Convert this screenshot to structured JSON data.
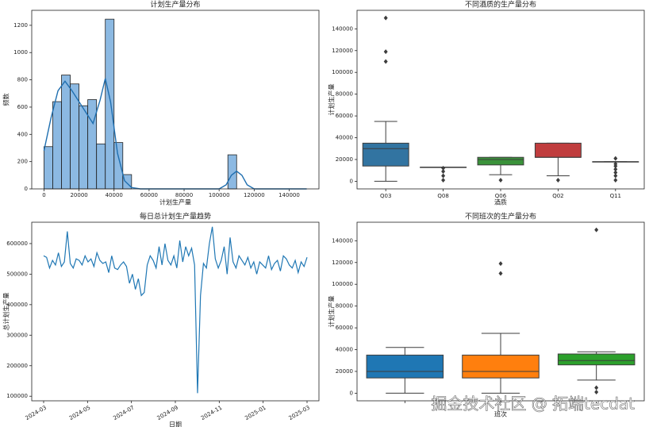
{
  "chart_data": [
    {
      "type": "histogram",
      "title": "计划生产量分布",
      "x_label": "计划生产量",
      "y_label": "频数",
      "color": "#5b9bd5",
      "line_color": "#1f6fb0",
      "bins": [
        0,
        5000,
        10000,
        15000,
        20000,
        25000,
        30000,
        35000,
        40000,
        45000,
        50000,
        55000,
        60000,
        65000,
        70000,
        75000,
        80000,
        85000,
        90000,
        95000,
        100000,
        105000,
        110000,
        115000,
        120000,
        125000,
        130000,
        135000,
        140000,
        145000,
        150000
      ],
      "values": [
        310,
        640,
        835,
        770,
        610,
        655,
        330,
        1245,
        340,
        105,
        0,
        0,
        0,
        0,
        0,
        0,
        0,
        0,
        0,
        0,
        0,
        250,
        0,
        0,
        0,
        0,
        0,
        0,
        0,
        0
      ],
      "kde": {
        "x": [
          0,
          4000,
          8000,
          12000,
          16000,
          20000,
          24000,
          28000,
          32000,
          35000,
          38000,
          42000,
          46000,
          50000,
          55000,
          60000,
          100000,
          104000,
          107000,
          110000,
          113000,
          116000,
          120000,
          150000
        ],
        "values": [
          280,
          520,
          720,
          790,
          720,
          640,
          560,
          480,
          650,
          810,
          640,
          260,
          60,
          10,
          0,
          0,
          0,
          30,
          100,
          130,
          100,
          30,
          0,
          0
        ]
      },
      "xlim": [
        -7000,
        157000
      ],
      "xticks": [
        0,
        20000,
        40000,
        60000,
        80000,
        100000,
        120000,
        140000
      ],
      "ylim": [
        0,
        1310
      ],
      "yticks": [
        0,
        200,
        400,
        600,
        800,
        1000,
        1200
      ]
    },
    {
      "type": "box",
      "title": "不同酒质的生产量分布",
      "x_label": "酒质",
      "y_label": "计划生产量",
      "categories": [
        "Q03",
        "Q08",
        "Q06",
        "Q02",
        "Q11"
      ],
      "boxes": [
        {
          "color": "#3274a1",
          "min": 0,
          "q1": 14000,
          "median": 30000,
          "q3": 35000,
          "max": 55000,
          "outliers": [
            110000,
            119000,
            150000
          ]
        },
        {
          "color": "#e1812c",
          "min": 13000,
          "q1": 13000,
          "median": 13000,
          "q3": 13000,
          "max": 13000,
          "outliers": [
            1000,
            5000,
            9000,
            12000
          ]
        },
        {
          "color": "#3a923a",
          "min": 6000,
          "q1": 15000,
          "median": 20000,
          "q3": 22000,
          "max": 22000,
          "outliers": [
            1000
          ]
        },
        {
          "color": "#c03d3e",
          "min": 5000,
          "q1": 22000,
          "median": 22000,
          "q3": 35000,
          "max": 35000,
          "outliers": [
            1000
          ]
        },
        {
          "color": "#9372b2",
          "min": 18000,
          "q1": 18000,
          "median": 18000,
          "q3": 18000,
          "max": 18000,
          "outliers": [
            1000,
            5000,
            8000,
            11000,
            14000,
            16000,
            21000
          ]
        }
      ],
      "ylim": [
        -7000,
        157000
      ],
      "yticks": [
        0,
        20000,
        40000,
        60000,
        80000,
        100000,
        120000,
        140000
      ]
    },
    {
      "type": "line",
      "title": "每日总计划生产量趋势",
      "x_label": "日期",
      "y_label": "总计划生产量",
      "color": "#1f77b4",
      "xticks": [
        "2024-03",
        "2024-05",
        "2024-07",
        "2024-09",
        "2024-11",
        "2025-01",
        "2025-03"
      ],
      "values": [
        560000,
        555000,
        520000,
        545000,
        530000,
        570000,
        525000,
        540000,
        640000,
        535000,
        520000,
        550000,
        545000,
        530000,
        560000,
        540000,
        550000,
        525000,
        570000,
        545000,
        535000,
        540000,
        505000,
        560000,
        520000,
        515000,
        530000,
        540000,
        525000,
        470000,
        500000,
        450000,
        485000,
        430000,
        440000,
        530000,
        560000,
        545000,
        520000,
        590000,
        530000,
        600000,
        545000,
        530000,
        560000,
        520000,
        610000,
        540000,
        590000,
        560000,
        585000,
        530000,
        110000,
        430000,
        535000,
        520000,
        600000,
        655000,
        550000,
        520000,
        545000,
        590000,
        500000,
        620000,
        540000,
        520000,
        560000,
        545000,
        530000,
        555000,
        520000,
        540000,
        500000,
        540000,
        530000,
        520000,
        560000,
        515000,
        535000,
        545000,
        510000,
        560000,
        550000,
        530000,
        520000,
        545000,
        505000,
        540000,
        525000,
        555000
      ],
      "ylim": [
        85000,
        670000
      ],
      "yticks": [
        100000,
        200000,
        300000,
        400000,
        500000,
        600000
      ]
    },
    {
      "type": "box",
      "title": "不同班次的生产量分布",
      "x_label": "班次",
      "y_label": "计划生产量",
      "categories": [
        null,
        null,
        null
      ],
      "boxes": [
        {
          "color": "#1f77b4",
          "min": 0,
          "q1": 14000,
          "median": 20000,
          "q3": 35000,
          "max": 42000,
          "outliers": []
        },
        {
          "color": "#ff7f0e",
          "min": 0,
          "q1": 14000,
          "median": 20000,
          "q3": 35000,
          "max": 55000,
          "outliers": [
            110000,
            119000
          ]
        },
        {
          "color": "#2ca02c",
          "min": 12000,
          "q1": 26000,
          "median": 30000,
          "q3": 36000,
          "max": 38000,
          "outliers": [
            1000,
            5000,
            150000
          ]
        }
      ],
      "ylim": [
        -7000,
        157000
      ],
      "yticks": [
        0,
        20000,
        40000,
        60000,
        80000,
        100000,
        120000,
        140000
      ]
    }
  ],
  "watermark": "掘金技术社区 @ 拓端tecdat"
}
